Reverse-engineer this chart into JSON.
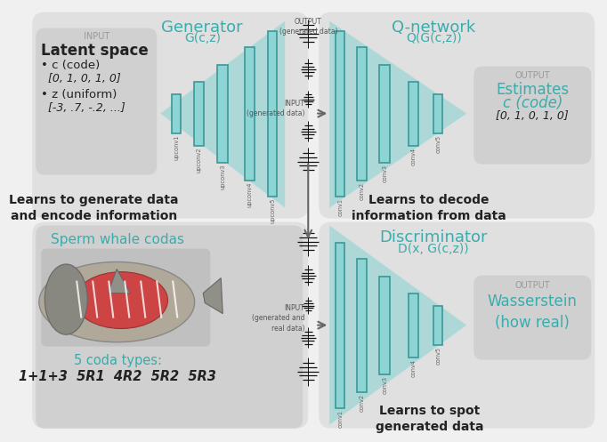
{
  "bg_color": "#f0f0f0",
  "teal_fill": "#8dd4d4",
  "teal_edge": "#3a9898",
  "teal_title": "#3aacac",
  "gray_panel": "#e0e0e0",
  "gray_inner": "#d0d0d0",
  "dark": "#222222",
  "gray_label": "#999999",
  "arrow_color": "#666666",
  "gen_title": "Generator",
  "gen_sub": "G(c,z)",
  "qnet_title": "Q-network",
  "qnet_sub": "Q(G(c,z))",
  "disc_title": "Discriminator",
  "disc_sub": "D(x, G(c,z))",
  "input_lbl": "INPUT",
  "output_lbl": "OUTPUT",
  "latent_title": "Latent space",
  "bullet_c": "• c (code)",
  "c_val": "[0, 1, 0, 1, 0]",
  "bullet_z": "• z (uniform)",
  "z_val": "[-3, .7, -.2, ...]",
  "gen_caption": "Learns to generate data\nand encode information",
  "qnet_caption": "Learns to decode\ninformation from data",
  "disc_caption": "Learns to spot\ngenerated data",
  "whale_title": "Sperm whale codas",
  "coda_label": "5 coda types:",
  "coda_vals": "1+1+3  5R1  4R2  5R2  5R3",
  "qnet_out1": "Estimates",
  "qnet_out2": "c (code)",
  "qnet_out3": "[0, 1, 0, 1, 0]",
  "disc_out": "Wasserstein\n(how real)",
  "out_gen_lbl": "OUTPUT\n(generated data)",
  "in_gen_lbl": "INPUT\n(generated data)",
  "in_gen_real_lbl": "INPUT\n(generated and\nreal data)"
}
